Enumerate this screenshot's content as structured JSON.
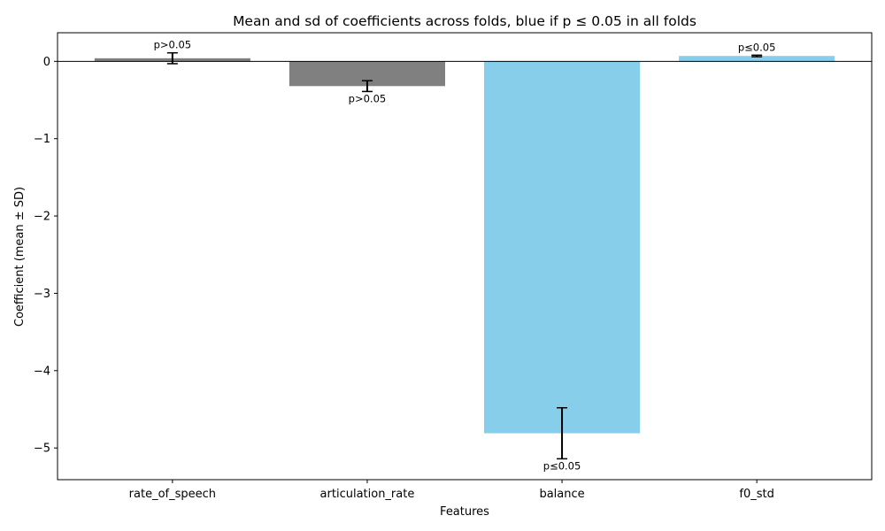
{
  "chart_data": {
    "type": "bar",
    "title": "Mean and sd of coefficients across folds, blue if p ≤ 0.05 in all folds",
    "xlabel": "Features",
    "ylabel": "Coefficient (mean ± SD)",
    "ylim": [
      -5.41,
      0.37
    ],
    "yticks": [
      0,
      -1,
      -2,
      -3,
      -4,
      -5
    ],
    "ytick_labels": [
      "0",
      "−1",
      "−2",
      "−3",
      "−4",
      "−5"
    ],
    "grid": false,
    "zero_line": true,
    "categories": [
      "rate_of_speech",
      "articulation_rate",
      "balance",
      "f0_std"
    ],
    "values": [
      0.04,
      -0.32,
      -4.81,
      0.07
    ],
    "sd": [
      0.07,
      0.07,
      0.33,
      0.01
    ],
    "colors": [
      "#808080",
      "#808080",
      "#87ceeb",
      "#87ceeb"
    ],
    "annotations": [
      "p>0.05",
      "p>0.05",
      "p≤0.05",
      "p≤0.05"
    ]
  }
}
